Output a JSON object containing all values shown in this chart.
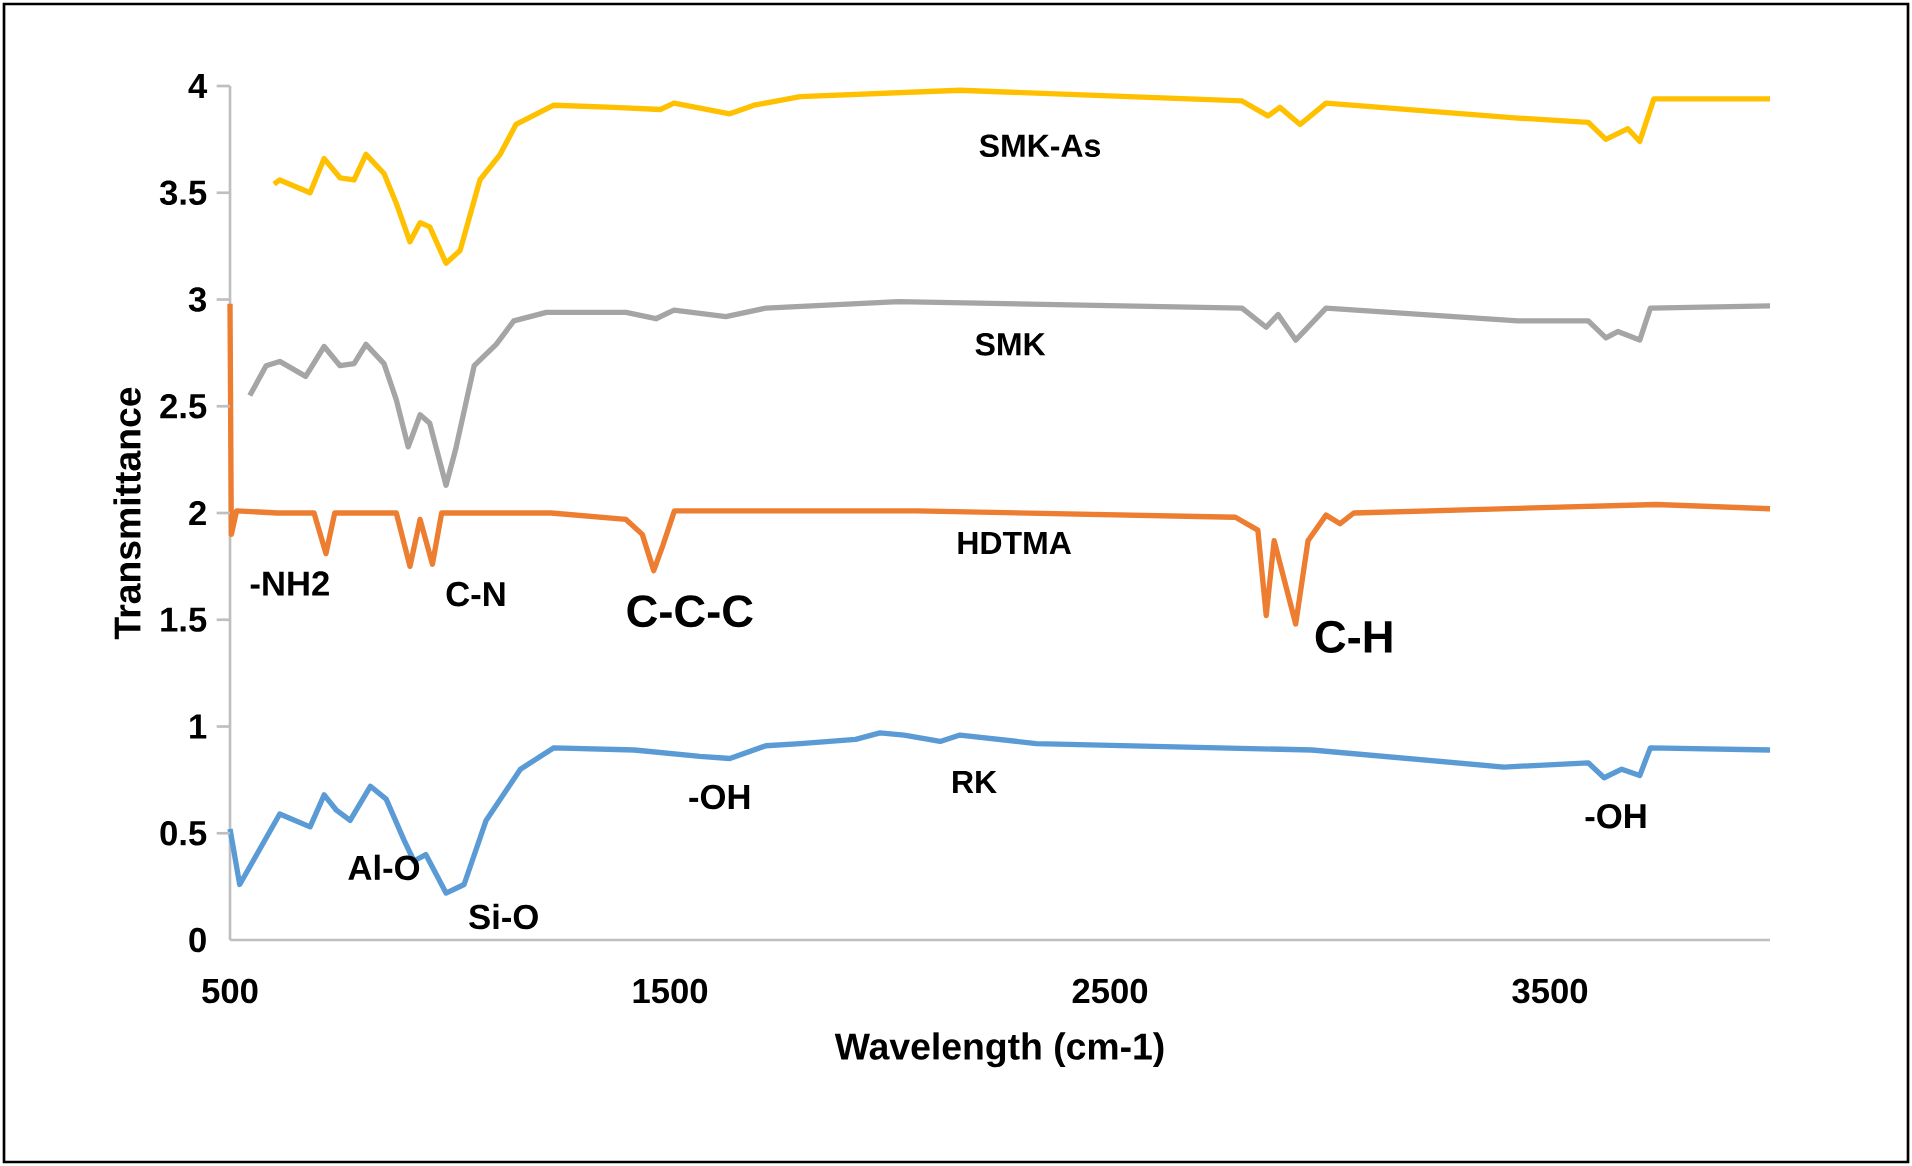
{
  "chart_data": {
    "type": "line",
    "xlabel": "Wavelength (cm-1)",
    "ylabel": "Transmittance",
    "xlim": [
      500,
      4000
    ],
    "ylim": [
      0,
      4
    ],
    "xticks": [
      500,
      1500,
      2500,
      3500
    ],
    "yticks": [
      0,
      0.5,
      1,
      1.5,
      2,
      2.5,
      3,
      3.5,
      4
    ],
    "series": [
      {
        "name": "SMK-As",
        "color": "#ffc000",
        "x": [
          600,
          613,
          682,
          714,
          750,
          782,
          809,
          850,
          878,
          909,
          932,
          954,
          991,
          1023,
          1068,
          1114,
          1150,
          1236,
          1373,
          1478,
          1509,
          1636,
          1691,
          1796,
          2159,
          2800,
          2859,
          2886,
          2932,
          2991,
          3427,
          3587,
          3627,
          3677,
          3704,
          3736,
          4000
        ],
        "values": [
          3.54,
          3.56,
          3.5,
          3.66,
          3.57,
          3.56,
          3.68,
          3.59,
          3.45,
          3.27,
          3.36,
          3.34,
          3.17,
          3.23,
          3.56,
          3.68,
          3.82,
          3.91,
          3.9,
          3.89,
          3.92,
          3.87,
          3.91,
          3.95,
          3.98,
          3.93,
          3.86,
          3.9,
          3.82,
          3.92,
          3.85,
          3.83,
          3.75,
          3.8,
          3.74,
          3.94,
          3.94
        ]
      },
      {
        "name": "SMK",
        "color": "#a5a5a5",
        "x": [
          545,
          582,
          613,
          672,
          714,
          750,
          782,
          809,
          850,
          878,
          905,
          932,
          954,
          991,
          1013,
          1055,
          1105,
          1145,
          1219,
          1400,
          1468,
          1509,
          1627,
          1718,
          2019,
          2800,
          2855,
          2882,
          2922,
          2991,
          3427,
          3587,
          3627,
          3654,
          3704,
          3728,
          4000
        ],
        "values": [
          2.55,
          2.69,
          2.71,
          2.64,
          2.78,
          2.69,
          2.7,
          2.79,
          2.7,
          2.53,
          2.31,
          2.46,
          2.42,
          2.13,
          2.3,
          2.69,
          2.79,
          2.9,
          2.94,
          2.94,
          2.91,
          2.95,
          2.92,
          2.96,
          2.99,
          2.96,
          2.87,
          2.93,
          2.81,
          2.96,
          2.9,
          2.9,
          2.82,
          2.85,
          2.81,
          2.96,
          2.97
        ]
      },
      {
        "name": "HDTMA",
        "color": "#ed7d31",
        "x": [
          500,
          503,
          515,
          608,
          691,
          718,
          738,
          878,
          909,
          932,
          960,
          981,
          1230,
          1400,
          1437,
          1463,
          1484,
          1510,
          2059,
          2785,
          2836,
          2855,
          2873,
          2922,
          2950,
          2991,
          3023,
          3054,
          3741,
          4000
        ],
        "values": [
          2.98,
          1.9,
          2.01,
          2.0,
          2.0,
          1.81,
          2.0,
          2.0,
          1.75,
          1.97,
          1.76,
          2.0,
          2.0,
          1.97,
          1.9,
          1.73,
          1.85,
          2.01,
          2.01,
          1.98,
          1.92,
          1.52,
          1.87,
          1.48,
          1.87,
          1.99,
          1.95,
          2.0,
          2.04,
          2.02
        ]
      },
      {
        "name": "RK",
        "color": "#5b9bd5",
        "x": [
          500,
          522,
          613,
          682,
          714,
          741,
          773,
          819,
          855,
          895,
          918,
          945,
          991,
          1032,
          1082,
          1160,
          1236,
          1419,
          1568,
          1636,
          1718,
          1796,
          1922,
          1977,
          2032,
          2114,
          2159,
          2332,
          2959,
          3395,
          3587,
          3623,
          3663,
          3704,
          3728,
          4000
        ],
        "values": [
          0.52,
          0.26,
          0.59,
          0.53,
          0.68,
          0.61,
          0.56,
          0.72,
          0.66,
          0.47,
          0.37,
          0.4,
          0.22,
          0.26,
          0.56,
          0.8,
          0.9,
          0.89,
          0.86,
          0.85,
          0.91,
          0.92,
          0.94,
          0.97,
          0.96,
          0.93,
          0.96,
          0.92,
          0.89,
          0.81,
          0.83,
          0.76,
          0.8,
          0.77,
          0.9,
          0.89
        ]
      }
    ],
    "annotations": [
      "-NH2",
      "C-N",
      "C-C-C",
      "C-H",
      "-OH",
      "-OH",
      "Al-O",
      "Si-O"
    ]
  }
}
